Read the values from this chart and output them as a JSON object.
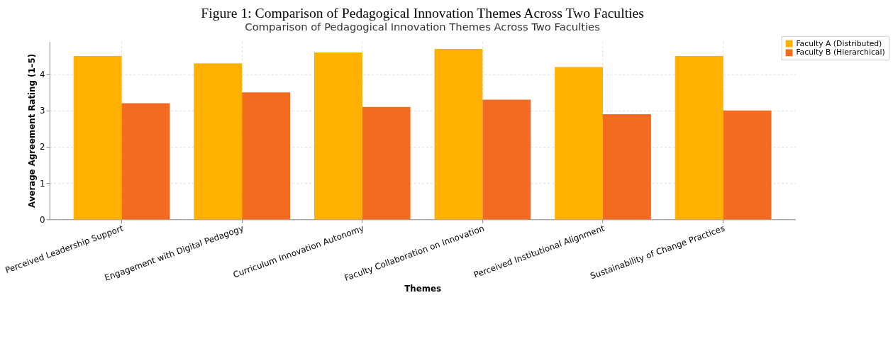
{
  "chart_data": {
    "type": "bar",
    "title": "Figure 1: Comparison of Pedagogical Innovation Themes Across Two Faculties",
    "subtitle": "Comparison of Pedagogical Innovation Themes Across Two Faculties",
    "xlabel": "Themes",
    "ylabel": "Average Agreement Rating (1–5)",
    "categories": [
      "Perceived Leadership Support",
      "Engagement with Digital Pedagogy",
      "Curriculum Innovation Autonomy",
      "Faculty Collaboration on Innovation",
      "Perceived Institutional Alignment",
      "Sustainability of Change Practices"
    ],
    "series": [
      {
        "name": "Faculty A (Distributed)",
        "color": "#ffb000",
        "values": [
          4.5,
          4.3,
          4.6,
          4.7,
          4.2,
          4.5
        ]
      },
      {
        "name": "Faculty B (Hierarchical)",
        "color": "#f26b21",
        "values": [
          3.2,
          3.5,
          3.1,
          3.3,
          2.9,
          3.0
        ]
      }
    ],
    "ylim": [
      0,
      4.9
    ],
    "yticks": [
      0,
      1,
      2,
      3,
      4
    ],
    "grid": true,
    "legend": "top right"
  }
}
